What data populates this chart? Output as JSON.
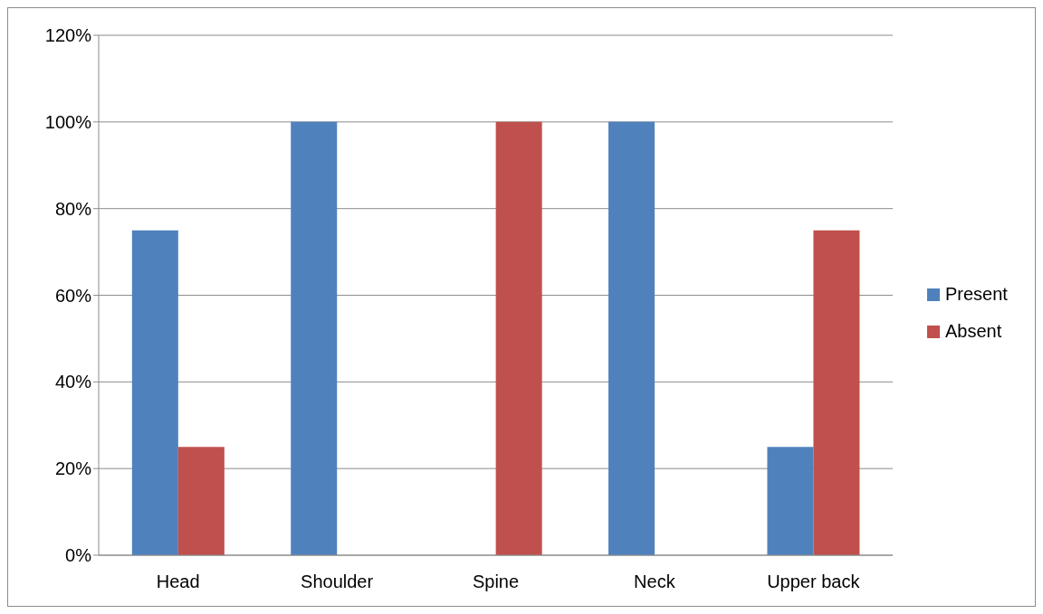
{
  "chart_data": {
    "type": "bar",
    "categories": [
      "Head",
      "Shoulder",
      "Spine",
      "Neck",
      "Upper back"
    ],
    "series": [
      {
        "name": "Present",
        "color": "#4f81bd",
        "values": [
          75,
          100,
          0,
          100,
          25
        ]
      },
      {
        "name": "Absent",
        "color": "#c0504d",
        "values": [
          25,
          0,
          100,
          0,
          75
        ]
      }
    ],
    "ylim": [
      0,
      120
    ],
    "yticks": [
      {
        "value": 0,
        "label": "0%"
      },
      {
        "value": 20,
        "label": "20%"
      },
      {
        "value": 40,
        "label": "40%"
      },
      {
        "value": 60,
        "label": "60%"
      },
      {
        "value": 80,
        "label": "80%"
      },
      {
        "value": 100,
        "label": "100%"
      },
      {
        "value": 120,
        "label": "120%"
      }
    ],
    "grid": "y",
    "legend": "right"
  }
}
